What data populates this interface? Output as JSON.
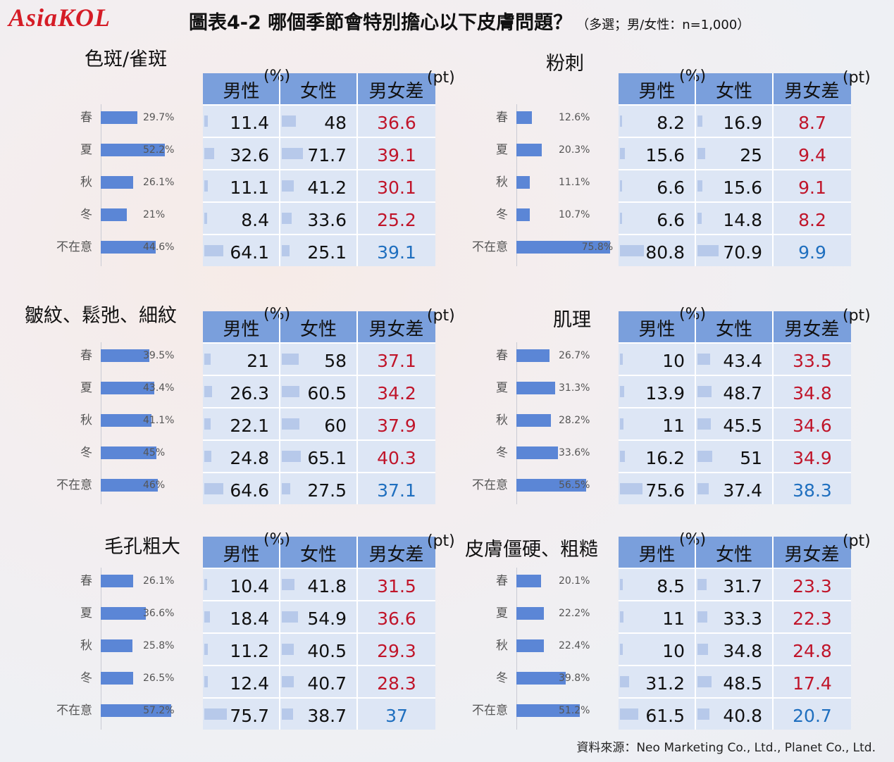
{
  "header": {
    "logo": "AsiaKOL",
    "title": "圖表4-2  哪個季節會特別擔心以下皮膚問題？",
    "subtitle": "（多選；男/女性：n=1,000）"
  },
  "table_headers": {
    "male": "男性",
    "female": "女性",
    "diff": "男女差",
    "pct_unit": "(%)",
    "pt_unit": "(pt)"
  },
  "colors": {
    "bar": "#5b86d6",
    "header": "#7a9fdc",
    "table_bg": "#dde6f5",
    "mini_bar": "#b7c9ea",
    "diff_red": "#c0152a",
    "diff_blue": "#1f6fbf"
  },
  "source": "資料來源：Neo Marketing Co., Ltd., Planet Co., Ltd.",
  "chart_data": [
    {
      "type": "bar",
      "title": "色斑/雀斑",
      "categories": [
        "春",
        "夏",
        "秋",
        "冬",
        "不在意"
      ],
      "values": [
        29.7,
        52.2,
        26.1,
        21,
        44.6
      ],
      "labels": [
        "29.7%",
        "52.2%",
        "26.1%",
        "21%",
        "44.6%"
      ],
      "male": [
        "11.4",
        "32.6",
        "11.1",
        "8.4",
        "64.1"
      ],
      "female": [
        "48",
        "71.7",
        "41.2",
        "33.6",
        "25.1"
      ],
      "diff": [
        "36.6",
        "39.1",
        "30.1",
        "25.2",
        "39.1"
      ],
      "diff_color": [
        "red",
        "red",
        "red",
        "red",
        "blue"
      ]
    },
    {
      "type": "bar",
      "title": "粉刺",
      "categories": [
        "春",
        "夏",
        "秋",
        "冬",
        "不在意"
      ],
      "values": [
        12.6,
        20.3,
        11.1,
        10.7,
        75.8
      ],
      "labels": [
        "12.6%",
        "20.3%",
        "11.1%",
        "10.7%",
        "75.8%"
      ],
      "male": [
        "8.2",
        "15.6",
        "6.6",
        "6.6",
        "80.8"
      ],
      "female": [
        "16.9",
        "25",
        "15.6",
        "14.8",
        "70.9"
      ],
      "diff": [
        "8.7",
        "9.4",
        "9.1",
        "8.2",
        "9.9"
      ],
      "diff_color": [
        "red",
        "red",
        "red",
        "red",
        "blue"
      ]
    },
    {
      "type": "bar",
      "title": "皺紋、鬆弛、細紋",
      "categories": [
        "春",
        "夏",
        "秋",
        "冬",
        "不在意"
      ],
      "values": [
        39.5,
        43.4,
        41.1,
        45,
        46
      ],
      "labels": [
        "39.5%",
        "43.4%",
        "41.1%",
        "45%",
        "46%"
      ],
      "male": [
        "21",
        "26.3",
        "22.1",
        "24.8",
        "64.6"
      ],
      "female": [
        "58",
        "60.5",
        "60",
        "65.1",
        "27.5"
      ],
      "diff": [
        "37.1",
        "34.2",
        "37.9",
        "40.3",
        "37.1"
      ],
      "diff_color": [
        "red",
        "red",
        "red",
        "red",
        "blue"
      ]
    },
    {
      "type": "bar",
      "title": "肌理",
      "categories": [
        "春",
        "夏",
        "秋",
        "冬",
        "不在意"
      ],
      "values": [
        26.7,
        31.3,
        28.2,
        33.6,
        56.5
      ],
      "labels": [
        "26.7%",
        "31.3%",
        "28.2%",
        "33.6%",
        "56.5%"
      ],
      "male": [
        "10",
        "13.9",
        "11",
        "16.2",
        "75.6"
      ],
      "female": [
        "43.4",
        "48.7",
        "45.5",
        "51",
        "37.4"
      ],
      "diff": [
        "33.5",
        "34.8",
        "34.6",
        "34.9",
        "38.3"
      ],
      "diff_color": [
        "red",
        "red",
        "red",
        "red",
        "blue"
      ]
    },
    {
      "type": "bar",
      "title": "毛孔粗大",
      "categories": [
        "春",
        "夏",
        "秋",
        "冬",
        "不在意"
      ],
      "values": [
        26.1,
        36.6,
        25.8,
        26.5,
        57.2
      ],
      "labels": [
        "26.1%",
        "36.6%",
        "25.8%",
        "26.5%",
        "57.2%"
      ],
      "male": [
        "10.4",
        "18.4",
        "11.2",
        "12.4",
        "75.7"
      ],
      "female": [
        "41.8",
        "54.9",
        "40.5",
        "40.7",
        "38.7"
      ],
      "diff": [
        "31.5",
        "36.6",
        "29.3",
        "28.3",
        "37"
      ],
      "diff_color": [
        "red",
        "red",
        "red",
        "red",
        "blue"
      ]
    },
    {
      "type": "bar",
      "title": "皮膚僵硬、粗糙",
      "categories": [
        "春",
        "夏",
        "秋",
        "冬",
        "不在意"
      ],
      "values": [
        20.1,
        22.2,
        22.4,
        39.8,
        51.2
      ],
      "labels": [
        "20.1%",
        "22.2%",
        "22.4%",
        "39.8%",
        "51.2%"
      ],
      "male": [
        "8.5",
        "11",
        "10",
        "31.2",
        "61.5"
      ],
      "female": [
        "31.7",
        "33.3",
        "34.8",
        "48.5",
        "40.8"
      ],
      "diff": [
        "23.3",
        "22.3",
        "24.8",
        "17.4",
        "20.7"
      ],
      "diff_color": [
        "red",
        "red",
        "red",
        "red",
        "blue"
      ]
    }
  ]
}
